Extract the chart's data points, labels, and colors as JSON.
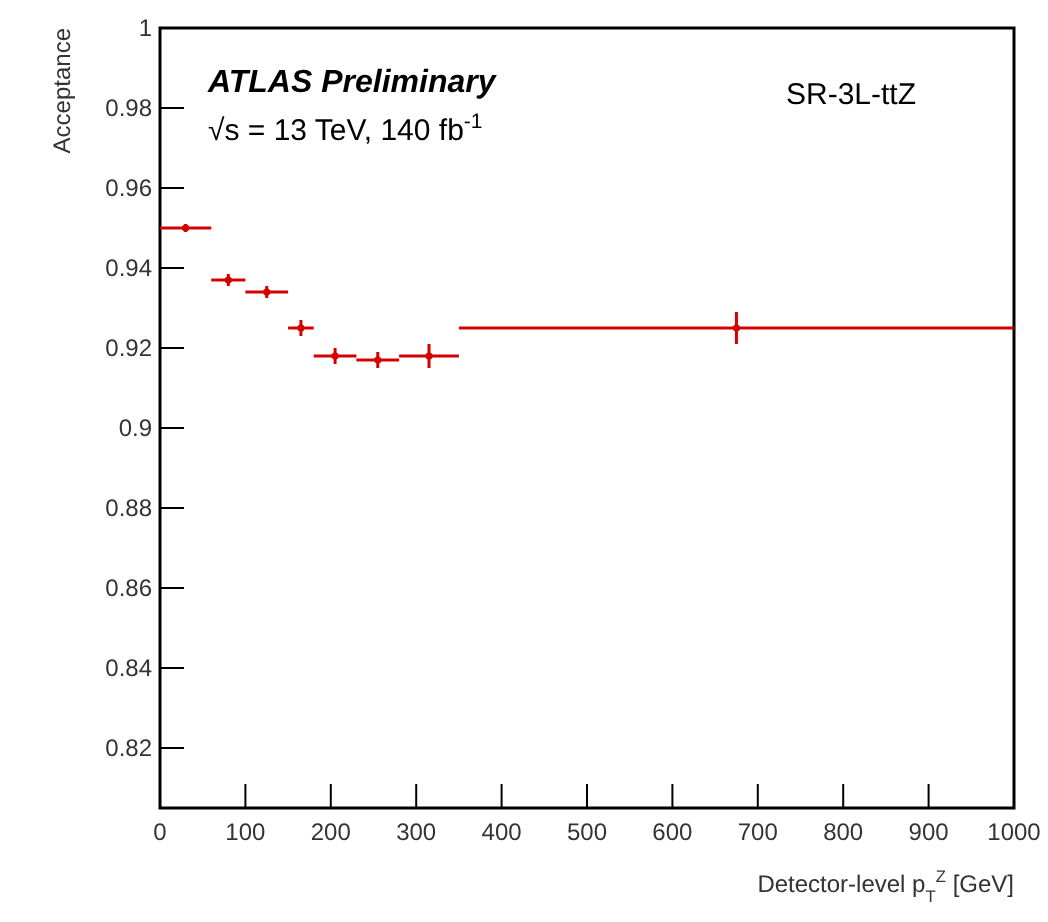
{
  "chart_data": {
    "type": "scatter",
    "xlabel": "Detector-level p$_{T}$$^{Z}$ [GeV]",
    "ylabel": "Acceptance",
    "annotations": [
      "ATLAS Preliminary",
      "√s = 13 TeV, 140 fb$^{-1}$",
      "SR-3L-ttZ"
    ],
    "x": [
      30,
      80,
      125,
      165,
      205,
      255,
      315,
      675
    ],
    "series": [
      {
        "color": "#d40000",
        "values": [
          0.95,
          0.937,
          0.934,
          0.925,
          0.918,
          0.917,
          0.918,
          0.925
        ],
        "errors": [
          0.001,
          0.0015,
          0.0015,
          0.002,
          0.002,
          0.002,
          0.003,
          0.004
        ],
        "xerrors": [
          [
            0,
            60
          ],
          [
            60,
            100
          ],
          [
            100,
            150
          ],
          [
            150,
            180
          ],
          [
            180,
            230
          ],
          [
            230,
            280
          ],
          [
            280,
            350
          ],
          [
            350,
            1000
          ]
        ]
      }
    ],
    "marker": "circle",
    "xlim": [
      0,
      1000
    ],
    "xticks": [
      0,
      100,
      200,
      300,
      400,
      500,
      600,
      700,
      800,
      900,
      1000
    ],
    "ylim": [
      0.805,
      1
    ],
    "yticks": [
      0.82,
      0.84,
      0.86,
      0.88,
      {
        "value": 0.9,
        "label": "0.9"
      },
      0.92,
      0.94,
      0.96,
      0.98,
      {
        "value": 1,
        "label": "1"
      }
    ],
    "grid": false
  }
}
